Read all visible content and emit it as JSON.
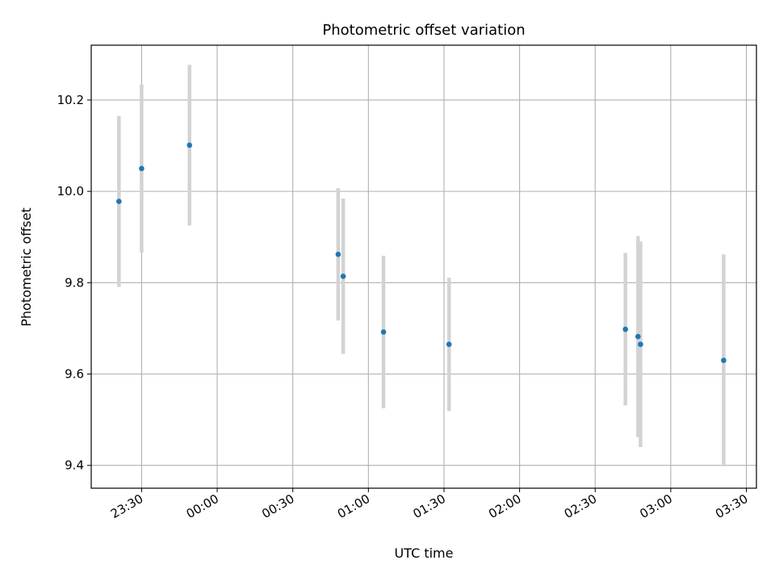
{
  "chart_data": {
    "type": "scatter",
    "title": "Photometric offset variation",
    "xlabel": "UTC time",
    "ylabel": "Photometric offset",
    "x_tick_labels": [
      "23:30",
      "00:00",
      "00:30",
      "01:00",
      "01:30",
      "02:00",
      "02:30",
      "03:00",
      "03:30"
    ],
    "x_tick_values": [
      "23:30",
      "24:00",
      "24:30",
      "25:00",
      "25:30",
      "26:00",
      "26:30",
      "27:00",
      "27:30"
    ],
    "y_tick_labels": [
      "9.4",
      "9.6",
      "9.8",
      "10.0",
      "10.2"
    ],
    "y_tick_values": [
      9.4,
      9.6,
      9.8,
      10.0,
      10.2
    ],
    "xlim": [
      "23:10",
      "27:34"
    ],
    "ylim": [
      9.35,
      10.32
    ],
    "grid": true,
    "series": [
      {
        "color": "#1f77b4",
        "errorbar_color": "#d3d3d3",
        "points": [
          {
            "t": "23:21",
            "y": 9.978,
            "err": 0.187
          },
          {
            "t": "23:30",
            "y": 10.05,
            "err": 0.184
          },
          {
            "t": "23:49",
            "y": 10.101,
            "err": 0.176
          },
          {
            "t": "24:48",
            "y": 9.862,
            "err": 0.145
          },
          {
            "t": "24:50",
            "y": 9.814,
            "err": 0.17
          },
          {
            "t": "25:06",
            "y": 9.692,
            "err": 0.167
          },
          {
            "t": "25:32",
            "y": 9.665,
            "err": 0.146
          },
          {
            "t": "26:42",
            "y": 9.698,
            "err": 0.167
          },
          {
            "t": "26:47",
            "y": 9.682,
            "err": 0.22
          },
          {
            "t": "26:48",
            "y": 9.665,
            "err": 0.225
          },
          {
            "t": "27:21",
            "y": 9.63,
            "err": 0.232
          }
        ]
      }
    ]
  }
}
